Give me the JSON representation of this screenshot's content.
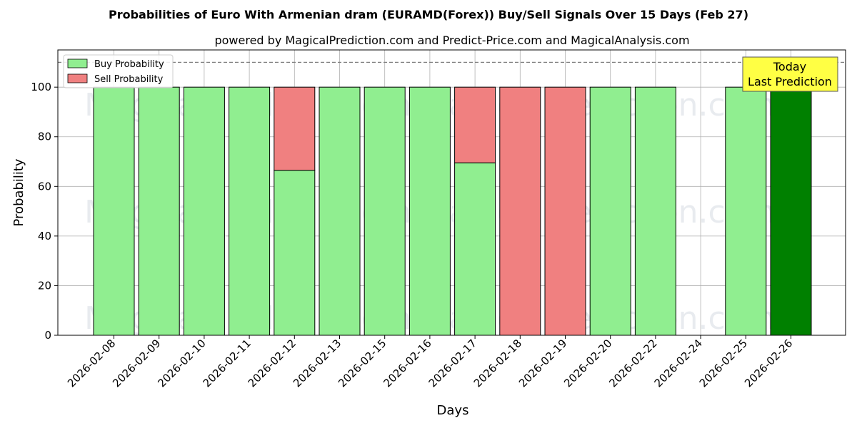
{
  "chart_data": {
    "type": "bar",
    "title": "Probabilities of Euro With Armenian dram (EURAMD(Forex)) Buy/Sell Signals Over 15 Days (Feb 27)",
    "subtitle": "powered by MagicalPrediction.com and Predict-Price.com and MagicalAnalysis.com",
    "xlabel": "Days",
    "ylabel": "Probability",
    "ylim": [
      0,
      115
    ],
    "yticks": [
      0,
      20,
      40,
      60,
      80,
      100
    ],
    "reference_line": 110,
    "grid": true,
    "legend_position": "top-left",
    "categories": [
      "2026-02-08",
      "2026-02-09",
      "2026-02-10",
      "2026-02-11",
      "2026-02-12",
      "2026-02-13",
      "2026-02-15",
      "2026-02-16",
      "2026-02-17",
      "2026-02-18",
      "2026-02-19",
      "2026-02-20",
      "2026-02-22",
      "2026-02-24",
      "2026-02-25",
      "2026-02-26"
    ],
    "series": [
      {
        "name": "Buy Probability",
        "color": "#90ee90",
        "values": [
          100,
          100,
          100,
          100,
          66.5,
          100,
          100,
          100,
          69.5,
          0,
          0,
          100,
          100,
          0,
          100,
          100
        ]
      },
      {
        "name": "Sell Probability",
        "color": "#f08080",
        "values": [
          0,
          0,
          0,
          0,
          33.5,
          0,
          0,
          0,
          30.5,
          100,
          100,
          0,
          0,
          0,
          0,
          0
        ]
      }
    ],
    "highlight": {
      "category": "2026-02-26",
      "color": "#008000"
    },
    "annotation": {
      "line1": "Today",
      "line2": "Last Prediction",
      "color": "#ffff44"
    },
    "watermarks": [
      "MagicalAnalysis.com",
      "MagicalPrediction.com"
    ]
  }
}
